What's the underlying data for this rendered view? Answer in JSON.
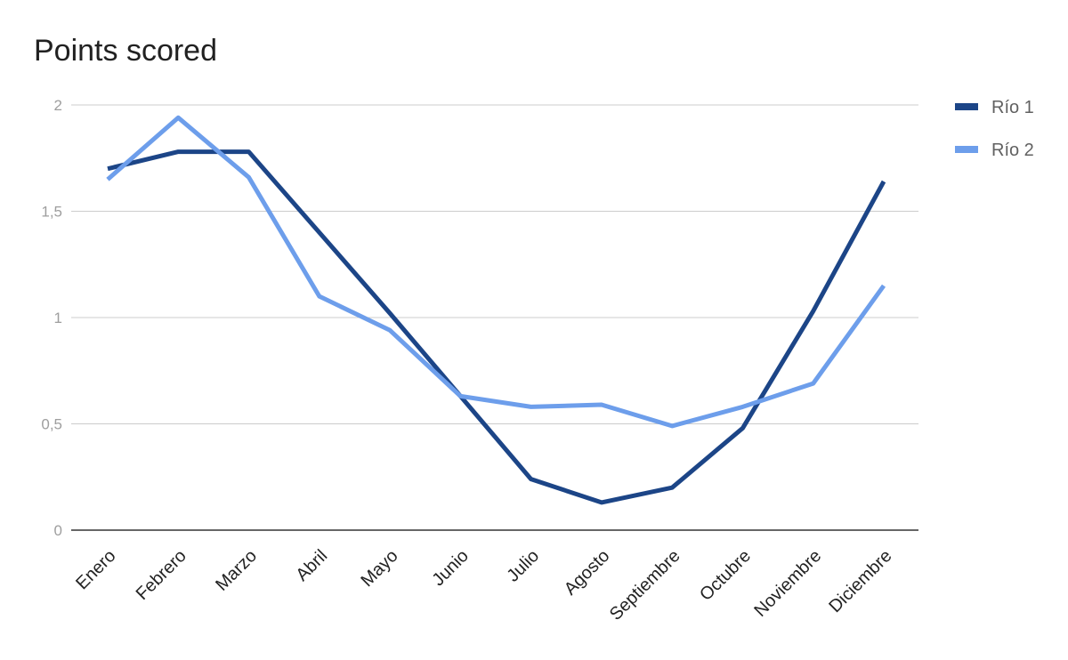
{
  "chart_data": {
    "type": "line",
    "title": "Points scored",
    "categories": [
      "Enero",
      "Febrero",
      "Marzo",
      "Abril",
      "Mayo",
      "Junio",
      "Julio",
      "Agosto",
      "Septiembre",
      "Octubre",
      "Noviembre",
      "Diciembre"
    ],
    "series": [
      {
        "name": "Río 1",
        "color": "#1c4587",
        "values": [
          1.7,
          1.78,
          1.78,
          1.4,
          1.02,
          0.63,
          0.24,
          0.13,
          0.2,
          0.48,
          1.03,
          1.64
        ]
      },
      {
        "name": "Río 2",
        "color": "#6d9eeb",
        "values": [
          1.65,
          1.94,
          1.66,
          1.1,
          0.94,
          0.63,
          0.58,
          0.59,
          0.49,
          0.58,
          0.69,
          1.15
        ]
      }
    ],
    "ylim": [
      0,
      2
    ],
    "yticks": [
      {
        "value": 0,
        "label": "0"
      },
      {
        "value": 0.5,
        "label": "0,5"
      },
      {
        "value": 1,
        "label": "1"
      },
      {
        "value": 1.5,
        "label": "1,5"
      },
      {
        "value": 2,
        "label": "2"
      }
    ],
    "grid": true,
    "legend_position": "right"
  }
}
